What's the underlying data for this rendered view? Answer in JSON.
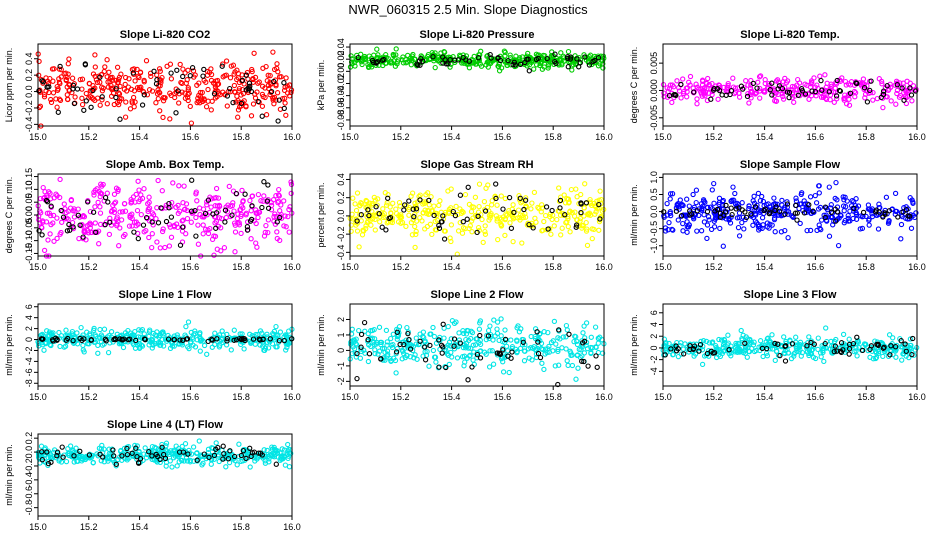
{
  "title": "NWR_060315  2.5 Min. Slope Diagnostics",
  "chart_data": [
    {
      "type": "scatter",
      "title": "Slope Li-820 CO2",
      "ylabel": "Licor ppm per min.",
      "xlim": [
        15.0,
        16.0
      ],
      "ylim": [
        -0.42,
        0.58
      ],
      "yticks": [
        -0.4,
        -0.2,
        0.0,
        0.2,
        0.4
      ],
      "ytick_labels": [
        "-0.4",
        "-0.2",
        "0.0",
        "0.2",
        "0.4"
      ],
      "xticks": [
        15.0,
        15.2,
        15.4,
        15.6,
        15.8,
        16.0
      ],
      "xtick_labels": [
        "15.0",
        "15.2",
        "15.4",
        "15.6",
        "15.8",
        "16.0"
      ],
      "series": [
        {
          "name": "main",
          "color": "#ff0000",
          "n": 380,
          "center": 0.05,
          "spread": 0.15,
          "min": -0.42,
          "max": 0.55
        },
        {
          "name": "ref",
          "color": "#000000",
          "n": 60,
          "center": 0.0,
          "spread": 0.14,
          "min": -0.4,
          "max": 0.4
        }
      ]
    },
    {
      "type": "scatter",
      "title": "Slope Li-820 Pressure",
      "ylabel": "kPa per min.",
      "xlim": [
        15.0,
        16.0
      ],
      "ylim": [
        -0.09,
        0.045
      ],
      "yticks": [
        -0.08,
        -0.06,
        -0.04,
        -0.02,
        0.0,
        0.02,
        0.04
      ],
      "ytick_labels": [
        "-0.08",
        "-0.06",
        "-0.04",
        "-0.02",
        "0.00",
        "0.02",
        "0.04"
      ],
      "xticks": [
        15.0,
        15.2,
        15.4,
        15.6,
        15.8,
        16.0
      ],
      "xtick_labels": [
        "15.0",
        "15.2",
        "15.4",
        "15.6",
        "15.8",
        "16.0"
      ],
      "series": [
        {
          "name": "main",
          "color": "#00cc00",
          "n": 380,
          "center": 0.018,
          "spread": 0.006,
          "min": -0.09,
          "max": 0.045
        },
        {
          "name": "ref",
          "color": "#000000",
          "n": 60,
          "center": 0.018,
          "spread": 0.006,
          "min": -0.02,
          "max": 0.04
        }
      ]
    },
    {
      "type": "scatter",
      "title": "Slope Li-820 Temp.",
      "ylabel": "degrees C per min.",
      "xlim": [
        15.0,
        16.0
      ],
      "ylim": [
        -0.0065,
        0.0085
      ],
      "yticks": [
        -0.005,
        0.0,
        0.005
      ],
      "ytick_labels": [
        "-0.005",
        "0.000",
        "0.005"
      ],
      "xticks": [
        15.0,
        15.2,
        15.4,
        15.6,
        15.8,
        16.0
      ],
      "xtick_labels": [
        "15.0",
        "15.2",
        "15.4",
        "15.6",
        "15.8",
        "16.0"
      ],
      "series": [
        {
          "name": "main",
          "color": "#ff00ff",
          "n": 300,
          "center": 0.0,
          "spread": 0.0012,
          "min": -0.0065,
          "max": 0.0085
        },
        {
          "name": "ref",
          "color": "#000000",
          "n": 60,
          "center": 0.0,
          "spread": 0.0008,
          "min": -0.004,
          "max": 0.004
        }
      ]
    },
    {
      "type": "scatter",
      "title": "Slope Amb. Box Temp.",
      "ylabel": "degrees C per min.",
      "xlim": [
        15.0,
        16.0
      ],
      "ylim": [
        -0.16,
        0.16
      ],
      "yticks": [
        -0.15,
        -0.1,
        -0.05,
        0.0,
        0.05,
        0.1,
        0.15
      ],
      "ytick_labels": [
        "-0.15",
        "-0.10",
        "-0.05",
        "0.00",
        "0.05",
        "0.10",
        "0.15"
      ],
      "xticks": [
        15.0,
        15.2,
        15.4,
        15.6,
        15.8,
        16.0
      ],
      "xtick_labels": [
        "15.0",
        "15.2",
        "15.4",
        "15.6",
        "15.8",
        "16.0"
      ],
      "series": [
        {
          "name": "main",
          "color": "#ff00ff",
          "n": 380,
          "center": 0.0,
          "spread": 0.06,
          "min": -0.16,
          "max": 0.16
        },
        {
          "name": "ref",
          "color": "#000000",
          "n": 60,
          "center": 0.0,
          "spread": 0.05,
          "min": -0.15,
          "max": 0.15
        }
      ]
    },
    {
      "type": "scatter",
      "title": "Slope Gas Stream RH",
      "ylabel": "percent per min.",
      "xlim": [
        15.0,
        16.0
      ],
      "ylim": [
        -0.44,
        0.46
      ],
      "yticks": [
        -0.4,
        -0.2,
        0.0,
        0.2,
        0.4
      ],
      "ytick_labels": [
        "-0.4",
        "-0.2",
        "0.0",
        "0.2",
        "0.4"
      ],
      "xticks": [
        15.0,
        15.2,
        15.4,
        15.6,
        15.8,
        16.0
      ],
      "xtick_labels": [
        "15.0",
        "15.2",
        "15.4",
        "15.6",
        "15.8",
        "16.0"
      ],
      "series": [
        {
          "name": "main",
          "color": "#ffff00",
          "n": 380,
          "center": 0.0,
          "spread": 0.14,
          "min": -0.44,
          "max": 0.46
        },
        {
          "name": "ref",
          "color": "#000000",
          "n": 60,
          "center": 0.0,
          "spread": 0.12,
          "min": -0.35,
          "max": 0.35
        }
      ]
    },
    {
      "type": "scatter",
      "title": "Slope Sample Flow",
      "ylabel": "ml/min per min.",
      "xlim": [
        15.0,
        16.0
      ],
      "ylim": [
        -1.3,
        1.1
      ],
      "yticks": [
        -1.0,
        -0.5,
        0.0,
        0.5,
        1.0
      ],
      "ytick_labels": [
        "-1.0",
        "-0.5",
        "0.0",
        "0.5",
        "1.0"
      ],
      "xticks": [
        15.0,
        15.2,
        15.4,
        15.6,
        15.8,
        16.0
      ],
      "xtick_labels": [
        "15.0",
        "15.2",
        "15.4",
        "15.6",
        "15.8",
        "16.0"
      ],
      "series": [
        {
          "name": "main",
          "color": "#0000ff",
          "n": 380,
          "center": 0.0,
          "spread": 0.3,
          "min": -1.3,
          "max": 1.1
        },
        {
          "name": "ref",
          "color": "#000000",
          "n": 60,
          "center": 0.0,
          "spread": 0.12,
          "min": -0.4,
          "max": 0.4
        }
      ]
    },
    {
      "type": "scatter",
      "title": "Slope Line 1 Flow",
      "ylabel": "ml/min per min.",
      "xlim": [
        15.0,
        16.0
      ],
      "ylim": [
        -8.5,
        6.5
      ],
      "yticks": [
        -8,
        -6,
        -4,
        -2,
        0,
        2,
        4,
        6
      ],
      "ytick_labels": [
        "-8",
        "-6",
        "-4",
        "-2",
        "0",
        "2",
        "4",
        "6"
      ],
      "xticks": [
        15.0,
        15.2,
        15.4,
        15.6,
        15.8,
        16.0
      ],
      "xtick_labels": [
        "15.0",
        "15.2",
        "15.4",
        "15.6",
        "15.8",
        "16.0"
      ],
      "series": [
        {
          "name": "main",
          "color": "#00e5e5",
          "n": 380,
          "center": 0.0,
          "spread": 0.9,
          "min": -8.5,
          "max": 6.5
        },
        {
          "name": "ref",
          "color": "#000000",
          "n": 60,
          "center": 0.0,
          "spread": 0.15,
          "min": -0.5,
          "max": 0.5
        }
      ]
    },
    {
      "type": "scatter",
      "title": "Slope Line 2 Flow",
      "ylabel": "ml/min per min.",
      "xlim": [
        15.0,
        16.0
      ],
      "ylim": [
        -2.3,
        3.0
      ],
      "yticks": [
        -2,
        -1,
        0,
        1,
        2
      ],
      "ytick_labels": [
        "-2",
        "-1",
        "0",
        "1",
        "2"
      ],
      "xticks": [
        15.0,
        15.2,
        15.4,
        15.6,
        15.8,
        16.0
      ],
      "xtick_labels": [
        "15.0",
        "15.2",
        "15.4",
        "15.6",
        "15.8",
        "16.0"
      ],
      "series": [
        {
          "name": "main",
          "color": "#00e5e5",
          "n": 380,
          "center": 0.3,
          "spread": 0.7,
          "min": -2.3,
          "max": 3.0
        },
        {
          "name": "ref",
          "color": "#000000",
          "n": 60,
          "center": 0.0,
          "spread": 0.8,
          "min": -2.2,
          "max": 2.0
        }
      ]
    },
    {
      "type": "scatter",
      "title": "Slope Line 3 Flow",
      "ylabel": "ml/min per min.",
      "xlim": [
        15.0,
        16.0
      ],
      "ylim": [
        -6.5,
        7.5
      ],
      "yticks": [
        -4,
        -2,
        0,
        2,
        4,
        6
      ],
      "ytick_labels": [
        "-4",
        "-2",
        "0",
        "2",
        "4",
        "6"
      ],
      "xticks": [
        15.0,
        15.2,
        15.4,
        15.6,
        15.8,
        16.0
      ],
      "xtick_labels": [
        "15.0",
        "15.2",
        "15.4",
        "15.6",
        "15.8",
        "16.0"
      ],
      "series": [
        {
          "name": "main",
          "color": "#00e5e5",
          "n": 380,
          "center": 0.0,
          "spread": 0.9,
          "min": -6.5,
          "max": 7.5
        },
        {
          "name": "ref",
          "color": "#000000",
          "n": 60,
          "center": 0.0,
          "spread": 0.8,
          "min": -2.5,
          "max": 2.5
        }
      ]
    },
    {
      "type": "scatter",
      "title": "Slope Line 4 (LT) Flow",
      "ylabel": "ml/min per min.",
      "xlim": [
        15.0,
        16.0
      ],
      "ylim": [
        -0.92,
        0.26
      ],
      "yticks": [
        -0.8,
        -0.6,
        -0.4,
        -0.2,
        0.0,
        0.2
      ],
      "ytick_labels": [
        "-0.8",
        "-0.6",
        "-0.4",
        "-0.2",
        "0.0",
        "0.2"
      ],
      "xticks": [
        15.0,
        15.2,
        15.4,
        15.6,
        15.8,
        16.0
      ],
      "xtick_labels": [
        "15.0",
        "15.2",
        "15.4",
        "15.6",
        "15.8",
        "16.0"
      ],
      "series": [
        {
          "name": "main",
          "color": "#00e5e5",
          "n": 380,
          "center": -0.05,
          "spread": 0.07,
          "min": -0.92,
          "max": 0.25
        },
        {
          "name": "ref",
          "color": "#000000",
          "n": 60,
          "center": -0.05,
          "spread": 0.06,
          "min": -0.2,
          "max": 0.2
        }
      ]
    }
  ]
}
